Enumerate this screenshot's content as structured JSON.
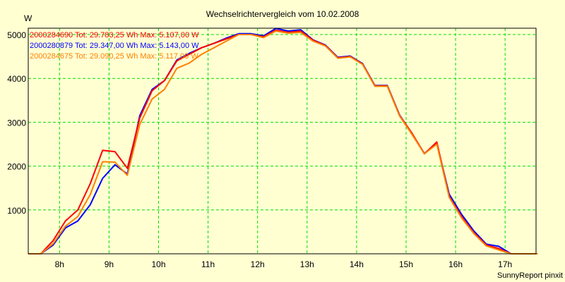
{
  "chart_data": {
    "type": "line",
    "title": "Wechselrichtervergleich vom 10.02.2008",
    "ylabel": "W",
    "xlabel": "",
    "ylim": [
      0,
      5000
    ],
    "xlim": [
      7.37,
      17.66
    ],
    "grid": true,
    "yticks": [
      1000,
      2000,
      3000,
      4000,
      5000
    ],
    "ytick_labels": [
      "1000",
      "2000",
      "3000",
      "4000",
      "5000"
    ],
    "xticks": [
      8,
      9,
      10,
      11,
      12,
      13,
      14,
      15,
      16,
      17
    ],
    "xtick_labels": [
      "8h",
      "9h",
      "10h",
      "11h",
      "12h",
      "13h",
      "14h",
      "15h",
      "16h",
      "17h"
    ],
    "legend_placement": "top-left",
    "x": [
      7.37,
      7.62,
      7.87,
      8.12,
      8.37,
      8.62,
      8.87,
      9.12,
      9.37,
      9.62,
      9.87,
      10.12,
      10.37,
      10.62,
      10.87,
      11.12,
      11.37,
      11.62,
      11.87,
      12.12,
      12.37,
      12.62,
      12.87,
      13.12,
      13.37,
      13.62,
      13.87,
      14.12,
      14.37,
      14.62,
      14.87,
      15.12,
      15.37,
      15.62,
      15.87,
      16.12,
      16.37,
      16.62,
      16.87,
      17.12,
      17.37,
      17.66
    ],
    "series": [
      {
        "name": "2000284690",
        "legend": "2000284690 Tot: 29.783,25 Wh Max: 5.107,00 W",
        "color": "#ff0000",
        "values": [
          0,
          0,
          300,
          750,
          1000,
          1600,
          2360,
          2330,
          1950,
          3100,
          3720,
          3950,
          4400,
          4550,
          4700,
          4800,
          4900,
          5000,
          5000,
          4950,
          5100,
          5050,
          5080,
          4870,
          4750,
          4470,
          4500,
          4330,
          3830,
          3830,
          3150,
          2750,
          2280,
          2550,
          1310,
          850,
          480,
          200,
          120,
          0,
          0,
          0
        ]
      },
      {
        "name": "2000280879",
        "legend": "2000280879 Tot: 29.347,00 Wh Max: 5.143,00 W",
        "color": "#0000ff",
        "values": [
          0,
          0,
          200,
          590,
          750,
          1120,
          1720,
          2030,
          1820,
          3150,
          3750,
          3950,
          4420,
          4570,
          4700,
          4800,
          4920,
          5020,
          5020,
          4970,
          5140,
          5080,
          5110,
          4880,
          4760,
          4480,
          4510,
          4340,
          3840,
          3840,
          3160,
          2740,
          2290,
          2520,
          1360,
          900,
          520,
          220,
          170,
          0,
          0,
          0
        ]
      },
      {
        "name": "2000284675",
        "legend": "2000284675 Tot: 29.090,25 Wh Max: 5.117,00 W",
        "color": "#ff8000",
        "values": [
          0,
          0,
          230,
          630,
          850,
          1350,
          2100,
          2090,
          1790,
          2950,
          3530,
          3750,
          4230,
          4350,
          4550,
          4700,
          4850,
          5000,
          5000,
          4930,
          5080,
          5030,
          5050,
          4850,
          4740,
          4460,
          4490,
          4320,
          3820,
          3820,
          3140,
          2720,
          2280,
          2500,
          1290,
          820,
          460,
          180,
          90,
          0,
          0,
          0
        ]
      }
    ],
    "footer": "SunnyReport pinxit",
    "colors": {
      "background": "#ffffd2",
      "grid": "#00e000",
      "axis": "#000000"
    }
  }
}
